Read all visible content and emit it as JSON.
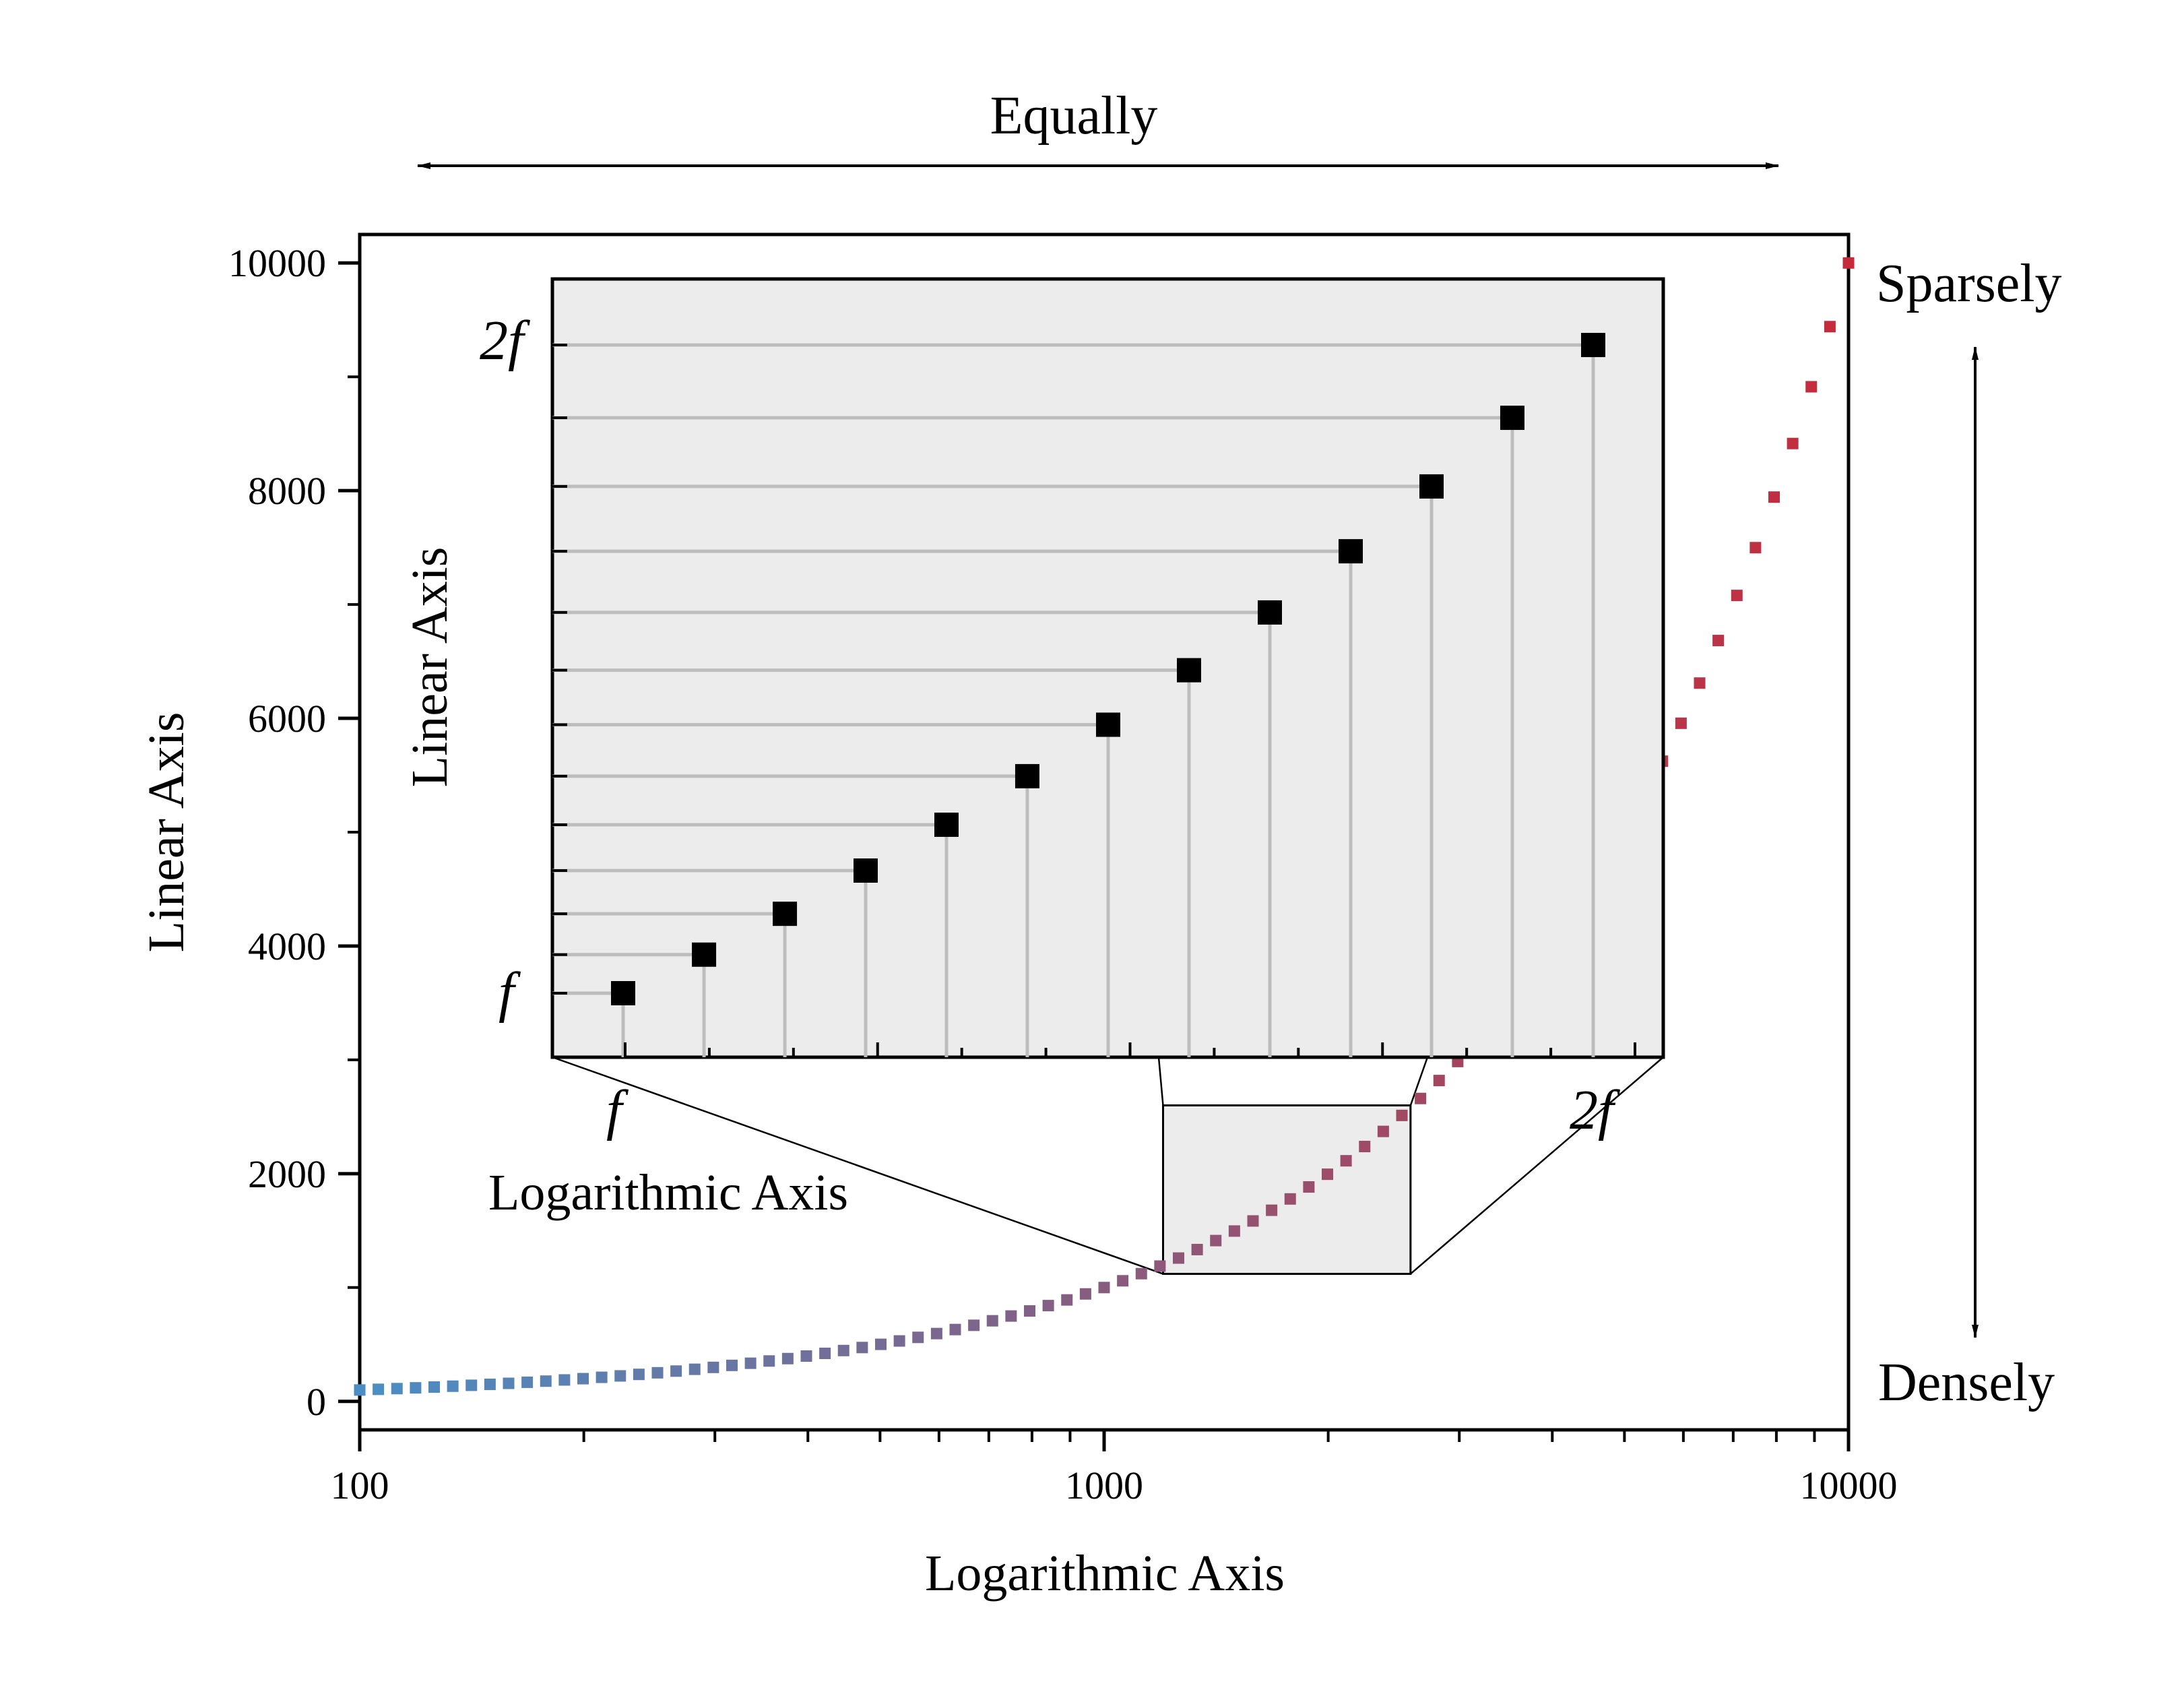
{
  "chart_data": {
    "type": "scatter",
    "xscale": "log",
    "x_label": "Logarithmic Axis",
    "y_label": "Linear Axis",
    "xlim": [
      100,
      10000
    ],
    "ylim": [
      -250,
      10250
    ],
    "x_ticks": [
      100,
      1000,
      10000
    ],
    "x_tick_labels": [
      "100",
      "1000",
      "10000"
    ],
    "y_ticks": [
      0,
      2000,
      4000,
      6000,
      8000,
      10000
    ],
    "y_tick_labels": [
      "0",
      "2000",
      "4000",
      "6000",
      "8000",
      "10000"
    ],
    "series": [
      {
        "n_points": 81,
        "x_start": 100,
        "x_end": 10000,
        "relation": "y = x",
        "color_start": "#4a8ec4",
        "color_end": "#c62a3a"
      }
    ],
    "zoom_box": {
      "x_range": [
        1200,
        2580
      ],
      "y_range": [
        1120,
        2600
      ]
    },
    "inset": {
      "x_label": "Logarithmic Axis",
      "y_label": "Linear Axis",
      "x_min_label": "f",
      "x_max_label": "2f",
      "y_min_label": "f",
      "y_max_label": "2f",
      "steps": [
        1,
        1.0595,
        1.1225,
        1.1892,
        1.2599,
        1.3348,
        1.4142,
        1.4983,
        1.5874,
        1.6818,
        1.7818,
        1.8877,
        2.0
      ],
      "background": "#ececec",
      "marker_color": "#000000",
      "guide_color": "#bdbdbd"
    },
    "annotations": {
      "top": "Equally",
      "right_top": "Sparsely",
      "right_bottom": "Densely"
    }
  }
}
